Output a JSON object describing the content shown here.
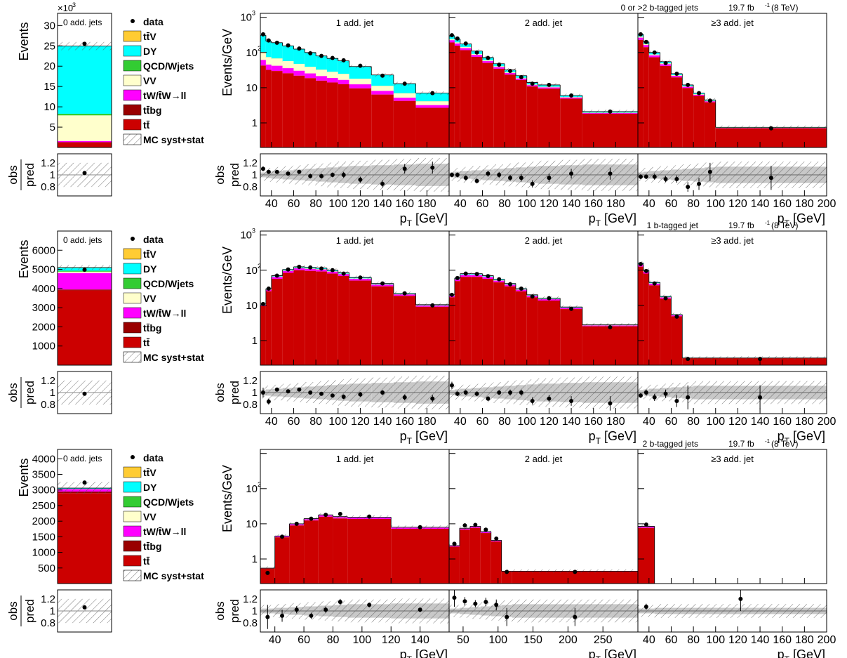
{
  "colors": {
    "ttbar": "#cc0000",
    "ttbg": "#990000",
    "tW": "#ff00ff",
    "VV": "#ffffcc",
    "QCD": "#33cc33",
    "DY": "#00ffff",
    "ttV": "#ffcc33",
    "unc_band": "#c8c8c8"
  },
  "legend": {
    "entries": [
      {
        "label": "data",
        "kind": "marker"
      },
      {
        "label": "tt̄V",
        "key": "ttV"
      },
      {
        "label": "DY",
        "key": "DY"
      },
      {
        "label": "QCD/Wjets",
        "key": "QCD"
      },
      {
        "label": "VV",
        "key": "VV"
      },
      {
        "label": "tW/t̄W→ll",
        "key": "tW"
      },
      {
        "label": "tt̄bg",
        "key": "ttbg"
      },
      {
        "label": "tt̄",
        "key": "ttbar"
      },
      {
        "label": "MC syst+stat",
        "kind": "hatch"
      }
    ]
  },
  "labels": {
    "events": "Events",
    "events_gev": "Events/GeV",
    "obs": "obs",
    "pred": "pred",
    "pt": "p",
    "pt_sub": "T",
    "pt_unit": " [GeV]",
    "x1000": "×10",
    "x1000_exp": "3",
    "lumi": "19.7 fb",
    "lumi_exp": "-1",
    "energy": "(8 TeV)"
  },
  "chart_data": [
    {
      "type": "bar",
      "row": 0,
      "title": "0 or >2 b-tagged jets",
      "zero_jet": {
        "label": "0 add. jets",
        "ylim": [
          0,
          33000
        ],
        "yticks": [
          5000,
          10000,
          15000,
          20000,
          25000,
          30000
        ],
        "yticklabels": [
          "5",
          "10",
          "15",
          "20",
          "25",
          "30"
        ],
        "stack": [
          [
            "ttbar",
            1200
          ],
          [
            "ttbg",
            100
          ],
          [
            "tW",
            300
          ],
          [
            "VV",
            6300
          ],
          [
            "QCD",
            400
          ],
          [
            "DY",
            16600
          ],
          [
            "ttV",
            50
          ]
        ],
        "data": 25500,
        "unc": 1000,
        "ratio": 1.03
      },
      "panels": [
        {
          "label": "1 add. jet",
          "xlim": [
            30,
            200
          ],
          "xticks": [
            40,
            60,
            80,
            100,
            120,
            140,
            160,
            180
          ],
          "bins": [
            30,
            35,
            40,
            50,
            60,
            70,
            80,
            90,
            100,
            110,
            130,
            150,
            170,
            200
          ],
          "stack_frac": {
            "ttbar": 0.3,
            "tW": 0.05,
            "VV": 0.07,
            "DY": 0.15
          },
          "mc": [
            310,
            210,
            190,
            155,
            125,
            100,
            80,
            68,
            58,
            40,
            23,
            13,
            7
          ],
          "data": [
            330,
            220,
            190,
            160,
            130,
            95,
            80,
            70,
            60,
            42,
            22,
            13,
            7
          ],
          "ratio": [
            1.1,
            1.05,
            1.05,
            1.02,
            1.05,
            0.98,
            0.98,
            1.0,
            1.0,
            0.92,
            0.85,
            1.1,
            1.12
          ],
          "ratio_err": [
            0.04,
            0.03,
            0.03,
            0.03,
            0.03,
            0.04,
            0.04,
            0.04,
            0.05,
            0.05,
            0.06,
            0.08,
            0.1
          ]
        },
        {
          "label": "2 add. jet",
          "xlim": [
            30,
            200
          ],
          "xticks": [
            40,
            60,
            80,
            100,
            120,
            140,
            160,
            180
          ],
          "bins": [
            30,
            35,
            40,
            50,
            60,
            70,
            80,
            90,
            100,
            110,
            130,
            150,
            200
          ],
          "stack_frac": {
            "ttbar": 0.9,
            "tW": 0.02,
            "VV": 0.01,
            "DY": 0.03
          },
          "mc": [
            300,
            240,
            175,
            110,
            72,
            48,
            32,
            22,
            14,
            12,
            6,
            2.1
          ],
          "data": [
            310,
            250,
            180,
            100,
            70,
            45,
            30,
            20,
            13,
            12,
            6,
            2.1
          ],
          "ratio": [
            1.0,
            1.0,
            0.95,
            0.9,
            1.02,
            1.0,
            0.95,
            0.95,
            0.85,
            0.95,
            1.02,
            1.02
          ],
          "ratio_err": [
            0.04,
            0.04,
            0.04,
            0.04,
            0.05,
            0.05,
            0.05,
            0.06,
            0.06,
            0.07,
            0.08,
            0.1
          ]
        },
        {
          "label": "≥3 add. jet",
          "xlim": [
            30,
            200
          ],
          "xticks": [
            40,
            60,
            80,
            100,
            120,
            140,
            160,
            180,
            200
          ],
          "bins": [
            30,
            35,
            40,
            50,
            60,
            70,
            80,
            90,
            100,
            200
          ],
          "stack_frac": {
            "ttbar": 0.92,
            "tW": 0.02,
            "VV": 0.01,
            "DY": 0.02
          },
          "mc": [
            330,
            200,
            100,
            55,
            25,
            12,
            7,
            4.5,
            0.75
          ],
          "data": [
            330,
            200,
            100,
            50,
            25,
            12,
            7,
            4.3,
            0.7
          ],
          "ratio": [
            0.97,
            0.97,
            0.97,
            0.93,
            0.93,
            0.8,
            0.85,
            1.05,
            0.95
          ],
          "ratio_err": [
            0.04,
            0.04,
            0.05,
            0.05,
            0.06,
            0.08,
            0.1,
            0.15,
            0.2
          ]
        }
      ]
    },
    {
      "type": "bar",
      "row": 1,
      "title": "1 b-tagged jet",
      "zero_jet": {
        "label": "0 add. jets",
        "ylim": [
          0,
          7000
        ],
        "yticks": [
          1000,
          2000,
          3000,
          4000,
          5000,
          6000
        ],
        "yticklabels": [
          "1000",
          "2000",
          "3000",
          "4000",
          "5000",
          "6000"
        ],
        "stack": [
          [
            "ttbar",
            3900
          ],
          [
            "ttbg",
            50
          ],
          [
            "tW",
            850
          ],
          [
            "VV",
            80
          ],
          [
            "QCD",
            50
          ],
          [
            "DY",
            150
          ],
          [
            "ttV",
            20
          ]
        ],
        "data": 4980,
        "unc": 120,
        "ratio": 0.98
      },
      "panels": [
        {
          "label": "1 add. jet",
          "xlim": [
            30,
            200
          ],
          "xticks": [
            40,
            60,
            80,
            100,
            120,
            140,
            160,
            180
          ],
          "bins": [
            30,
            35,
            40,
            50,
            60,
            70,
            80,
            90,
            100,
            110,
            130,
            150,
            170,
            200
          ],
          "stack_frac": {
            "ttbar": 0.96,
            "tW": 0.02,
            "VV": 0.005,
            "DY": 0.01
          },
          "mc": [
            11,
            30,
            70,
            105,
            125,
            120,
            115,
            100,
            85,
            62,
            42,
            22,
            10.5
          ],
          "data": [
            11,
            30,
            70,
            105,
            125,
            120,
            112,
            100,
            80,
            62,
            42,
            22,
            10
          ],
          "ratio": [
            1.0,
            0.85,
            1.05,
            1.02,
            1.05,
            1.0,
            0.98,
            0.95,
            0.93,
            0.97,
            1.0,
            0.92,
            0.9
          ],
          "ratio_err": [
            0.08,
            0.05,
            0.03,
            0.03,
            0.03,
            0.03,
            0.03,
            0.03,
            0.04,
            0.04,
            0.04,
            0.05,
            0.06
          ]
        },
        {
          "label": "2 add. jet",
          "xlim": [
            30,
            200
          ],
          "xticks": [
            40,
            60,
            80,
            100,
            120,
            140,
            160,
            180
          ],
          "bins": [
            30,
            35,
            40,
            50,
            60,
            70,
            80,
            90,
            100,
            110,
            130,
            150,
            200
          ],
          "stack_frac": {
            "ttbar": 0.96,
            "tW": 0.02,
            "VV": 0.005,
            "DY": 0.01
          },
          "mc": [
            20,
            60,
            80,
            80,
            70,
            55,
            42,
            30,
            20,
            16,
            9,
            2.8
          ],
          "data": [
            20,
            60,
            80,
            78,
            68,
            55,
            40,
            30,
            18,
            16,
            8,
            2.4
          ],
          "ratio": [
            1.12,
            0.98,
            1.0,
            0.98,
            0.9,
            1.0,
            1.0,
            1.0,
            0.86,
            0.9,
            0.86,
            0.82
          ],
          "ratio_err": [
            0.06,
            0.04,
            0.04,
            0.04,
            0.04,
            0.04,
            0.05,
            0.05,
            0.06,
            0.06,
            0.08,
            0.12
          ]
        },
        {
          "label": "≥3 add. jet",
          "xlim": [
            30,
            200
          ],
          "xticks": [
            40,
            60,
            80,
            100,
            120,
            140,
            160,
            180,
            200
          ],
          "bins": [
            30,
            35,
            40,
            50,
            60,
            70,
            80,
            200
          ],
          "stack_frac": {
            "ttbar": 0.96,
            "tW": 0.02,
            "VV": 0.005,
            "DY": 0.01
          },
          "mc": [
            160,
            100,
            45,
            18,
            5.5,
            0.32,
            0.32
          ],
          "data": [
            150,
            95,
            42,
            16,
            4.8,
            0.3,
            0.3
          ],
          "ratio": [
            0.95,
            1.0,
            0.92,
            0.98,
            0.86,
            0.92,
            0.92
          ],
          "ratio_err": [
            0.04,
            0.05,
            0.06,
            0.07,
            0.1,
            0.2,
            0.2
          ]
        }
      ]
    },
    {
      "type": "bar",
      "row": 2,
      "title": "2 b-tagged jets",
      "zero_jet": {
        "label": "0 add. jets",
        "ylim": [
          0,
          4300
        ],
        "yticks": [
          500,
          1000,
          1500,
          2000,
          2500,
          3000,
          3500,
          4000
        ],
        "yticklabels": [
          "500",
          "1000",
          "1500",
          "2000",
          "2500",
          "3000",
          "3500",
          "4000"
        ],
        "stack": [
          [
            "ttbar",
            2900
          ],
          [
            "ttbg",
            50
          ],
          [
            "tW",
            80
          ],
          [
            "VV",
            5
          ],
          [
            "QCD",
            5
          ],
          [
            "DY",
            15
          ],
          [
            "ttV",
            5
          ]
        ],
        "data": 3240,
        "unc": 200,
        "ratio": 1.06
      },
      "panels": [
        {
          "label": "1 add. jet",
          "xlim": [
            30,
            160
          ],
          "xticks": [
            40,
            60,
            80,
            100,
            120,
            140
          ],
          "bins": [
            30,
            40,
            50,
            60,
            70,
            80,
            90,
            120,
            160
          ],
          "stack_frac": {
            "ttbar": 0.97,
            "tW": 0.02,
            "VV": 0.003,
            "DY": 0.005
          },
          "mc": [
            0.55,
            4.5,
            10,
            14,
            18,
            16,
            15.5,
            8
          ],
          "data": [
            0.4,
            4.3,
            10,
            14,
            18,
            19,
            16,
            8
          ],
          "ratio": [
            0.9,
            0.92,
            1.02,
            0.92,
            1.02,
            1.15,
            1.1,
            1.02
          ],
          "ratio_err": [
            0.2,
            0.1,
            0.06,
            0.05,
            0.05,
            0.05,
            0.04,
            0.04
          ]
        },
        {
          "label": "2 add. jet",
          "xlim": [
            30,
            300
          ],
          "xticks": [
            50,
            100,
            150,
            200,
            250
          ],
          "bins": [
            30,
            45,
            60,
            75,
            90,
            105,
            120,
            300
          ],
          "stack_frac": {
            "ttbar": 0.97,
            "tW": 0.02,
            "VV": 0.003,
            "DY": 0.005
          },
          "mc": [
            2.4,
            7.5,
            8.5,
            6,
            3.4,
            0.45,
            0.45
          ],
          "data": [
            2.7,
            9,
            9.3,
            6.8,
            3.8,
            0.43,
            0.43
          ],
          "ratio": [
            1.22,
            1.16,
            1.12,
            1.15,
            1.1,
            0.9,
            0.9
          ],
          "ratio_err": [
            0.15,
            0.07,
            0.06,
            0.07,
            0.09,
            0.15,
            0.15
          ]
        },
        {
          "label": "≥3 add. jet",
          "xlim": [
            30,
            200
          ],
          "xticks": [
            40,
            60,
            80,
            100,
            120,
            140,
            160,
            180,
            200
          ],
          "bins": [
            30,
            45,
            200
          ],
          "stack_frac": {
            "ttbar": 0.97,
            "tW": 0.02,
            "VV": 0.003,
            "DY": 0.005
          },
          "mc": [
            8.5,
            0.14
          ],
          "data": [
            9.5,
            0.17
          ],
          "ratio": [
            1.07,
            1.2
          ],
          "ratio_err": [
            0.05,
            0.2
          ]
        }
      ]
    }
  ]
}
